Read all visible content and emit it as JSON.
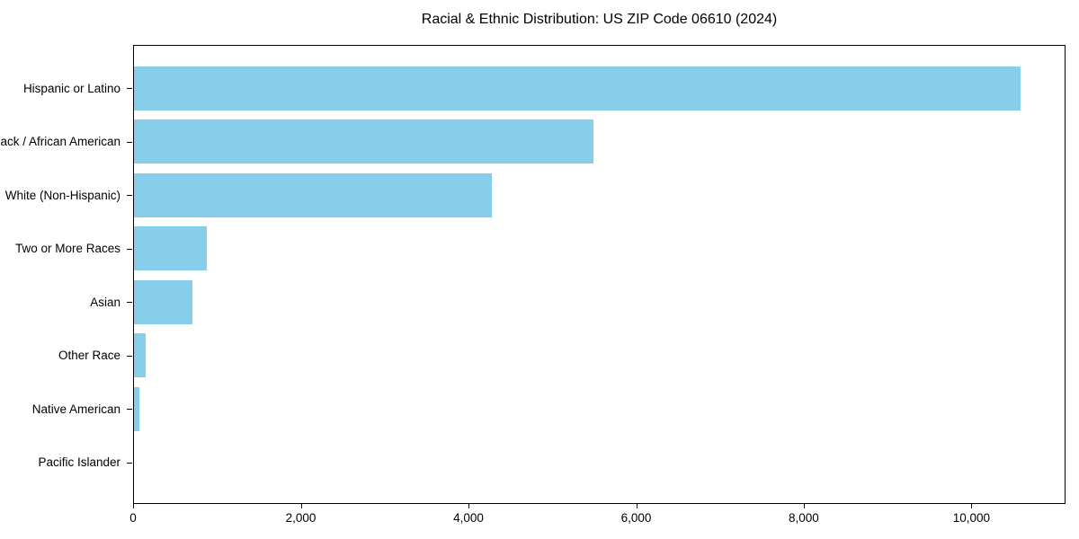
{
  "chart_data": {
    "type": "bar",
    "orientation": "horizontal",
    "title": "Racial & Ethnic Distribution: US ZIP Code 06610 (2024)",
    "categories": [
      "Hispanic or Latino",
      "Black / African American",
      "White (Non-Hispanic)",
      "Two or More Races",
      "Asian",
      "Other Race",
      "Native American",
      "Pacific Islander"
    ],
    "values": [
      10570,
      5480,
      4270,
      865,
      695,
      140,
      64,
      0
    ],
    "xlabel": "",
    "ylabel": "",
    "xlim": [
      0,
      11100
    ],
    "xticks": [
      0,
      2000,
      4000,
      6000,
      8000,
      10000
    ],
    "xtick_labels": [
      "0",
      "2,000",
      "4,000",
      "6,000",
      "8,000",
      "10,000"
    ],
    "grid": false,
    "legend": null,
    "colors": {
      "bar": "#87CEEB",
      "text": "#000000",
      "frame": "#000000",
      "background": "#ffffff"
    }
  }
}
